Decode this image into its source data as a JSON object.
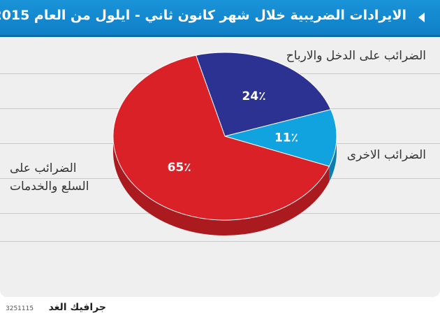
{
  "header": {
    "title": "الايرادات الضريبية خلال شهر كانون ثاني - ايلول من العام 2015"
  },
  "chart_data": {
    "type": "pie",
    "categories": [
      "الضرائب على السلع والخدمات",
      "الضرائب على الدخل والارباح",
      "الضرائب الاخرى"
    ],
    "values": [
      65,
      24,
      11
    ],
    "value_labels": [
      "65٪",
      "24٪",
      "11٪"
    ],
    "labels": {
      "goods": [
        "الضرائب على",
        "السلع والخدمات"
      ],
      "income": "الضرائب على الدخل والارباح",
      "other": "الضرائب الاخرى"
    },
    "colors": {
      "goods": "#db2128",
      "income": "#2b3292",
      "other": "#11a3e0"
    }
  },
  "footer": {
    "brand": "جرافيك الغد",
    "code": "3251115"
  }
}
